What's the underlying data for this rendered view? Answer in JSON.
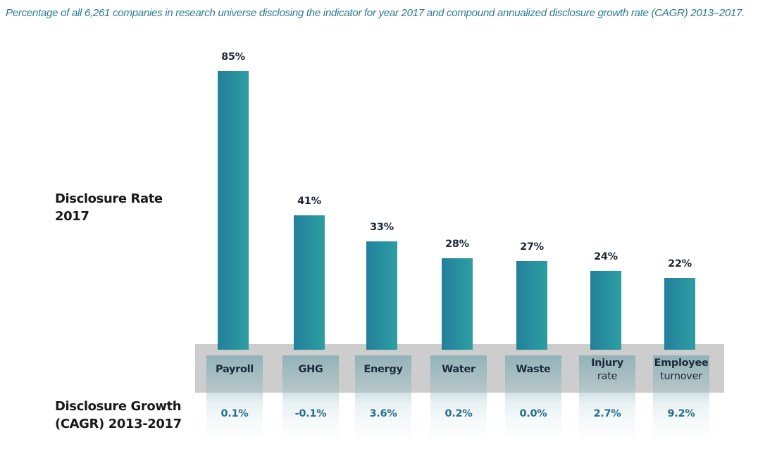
{
  "caption": "Percentage of all 6,261 companies in research universe disclosing the indicator for year 2017 and compound annualized disclosure growth rate (CAGR) 2013–2017.",
  "side_labels": {
    "rate": [
      "Disclosure Rate",
      "2017"
    ],
    "growth": [
      "Disclosure Growth",
      "(CAGR) 2013-2017"
    ]
  },
  "colors": {
    "bar_start": "#22809a",
    "bar_end": "#2d9ea3",
    "caption": "#2e7c93",
    "growth_text": "#2a6f8c",
    "band": "#cdcdcd"
  },
  "chart_data": {
    "type": "bar",
    "title": "Percentage of all 6,261 companies in research universe disclosing the indicator for year 2017 and compound annualized disclosure growth rate (CAGR) 2013–2017.",
    "xlabel": "",
    "ylabel": "Disclosure Rate 2017",
    "ylim": [
      0,
      85
    ],
    "grid": false,
    "legend": "none",
    "categories": [
      "Payroll",
      "GHG",
      "Energy",
      "Water",
      "Waste",
      "Injury rate",
      "Employee turnover"
    ],
    "category_lines": [
      [
        "Payroll"
      ],
      [
        "GHG"
      ],
      [
        "Energy"
      ],
      [
        "Water"
      ],
      [
        "Waste"
      ],
      [
        "Injury",
        "rate"
      ],
      [
        "Employee",
        "turnover"
      ]
    ],
    "series": [
      {
        "name": "Disclosure Rate 2017 (%)",
        "values": [
          85,
          41,
          33,
          28,
          27,
          24,
          22
        ],
        "labels": [
          "85%",
          "41%",
          "33%",
          "28%",
          "27%",
          "24%",
          "22%"
        ]
      },
      {
        "name": "Disclosure Growth (CAGR) 2013-2017 (%)",
        "values": [
          0.1,
          -0.1,
          3.6,
          0.2,
          0.0,
          2.7,
          9.2
        ],
        "labels": [
          "0.1%",
          "-0.1%",
          "3.6%",
          "0.2%",
          "0.0%",
          "2.7%",
          "9.2%"
        ]
      }
    ]
  }
}
